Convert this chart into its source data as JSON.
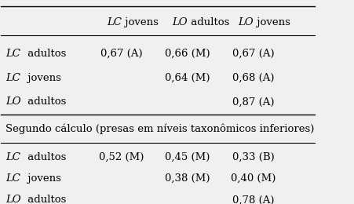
{
  "col_headers": [
    {
      "text": "LC",
      "italic": true,
      "suffix": " jovens"
    },
    {
      "text": "LO",
      "italic": true,
      "suffix": " adultos"
    },
    {
      "text": "LO",
      "italic": true,
      "suffix": " jovens"
    }
  ],
  "rows_section1": [
    {
      "label_italic": "LC",
      "label_rest": " adultos",
      "values": [
        "0,67 (A)",
        "0,66 (M)",
        "0,67 (A)"
      ]
    },
    {
      "label_italic": "LC",
      "label_rest": " jovens",
      "values": [
        "",
        "0,64 (M)",
        "0,68 (A)"
      ]
    },
    {
      "label_italic": "LO",
      "label_rest": " adultos",
      "values": [
        "",
        "",
        "0,87 (A)"
      ]
    }
  ],
  "section2_label": "Segundo cálculo (presas em níveis taxonômicos inferiores)",
  "rows_section2": [
    {
      "label_italic": "LC",
      "label_rest": " adultos",
      "values": [
        "0,52 (M)",
        "0,45 (M)",
        "0,33 (B)"
      ]
    },
    {
      "label_italic": "LC",
      "label_rest": " jovens",
      "values": [
        "",
        "0,38 (M)",
        "0,40 (M)"
      ]
    },
    {
      "label_italic": "LO",
      "label_rest": " adultos",
      "values": [
        "",
        "",
        "0,78 (A)"
      ]
    }
  ],
  "bg_color": "#f0f0f0",
  "font_size": 9.5,
  "section2_font_size": 9.5
}
